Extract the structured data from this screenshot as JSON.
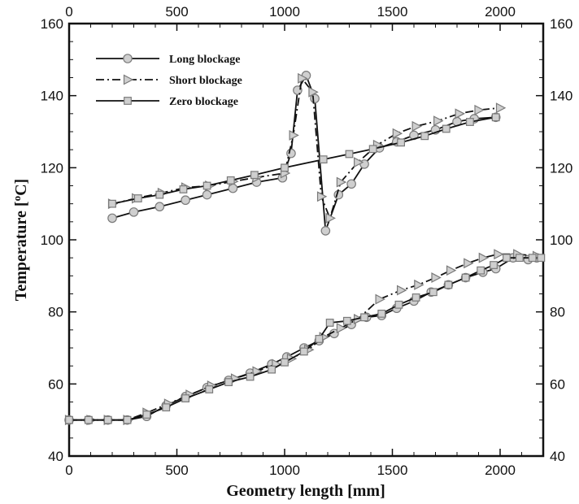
{
  "chart_data": {
    "type": "line",
    "xlabel": "Geometry length [mm]",
    "ylabel": "Temperature [",
    "ylabel_sup": "o",
    "ylabel_tail": "C]",
    "xlim": [
      0,
      2200
    ],
    "ylim": [
      40,
      160
    ],
    "x_ticks": [
      "0",
      "500",
      "1000",
      "1500",
      "2000"
    ],
    "y_ticks": [
      "40",
      "60",
      "80",
      "100",
      "120",
      "140",
      "160"
    ],
    "legend_position": "top-left",
    "grid": false,
    "series": [
      {
        "name": "Long blockage",
        "style": "solid",
        "marker": "circle",
        "upper": [
          [
            200,
            106
          ],
          [
            300,
            107.7
          ],
          [
            420,
            109.2
          ],
          [
            540,
            111
          ],
          [
            640,
            112.5
          ],
          [
            760,
            114.3
          ],
          [
            870,
            116
          ],
          [
            990,
            117.2
          ],
          [
            1030,
            124
          ],
          [
            1060,
            141.5
          ],
          [
            1100,
            145.6
          ],
          [
            1140,
            139.2
          ],
          [
            1190,
            102.5
          ],
          [
            1250,
            112.5
          ],
          [
            1310,
            115.5
          ],
          [
            1370,
            121
          ],
          [
            1440,
            125.5
          ],
          [
            1520,
            127.2
          ],
          [
            1600,
            129
          ],
          [
            1700,
            130.5
          ],
          [
            1800,
            132.8
          ],
          [
            1880,
            133.6
          ],
          [
            1980,
            134
          ]
        ],
        "lower": [
          [
            0,
            50
          ],
          [
            90,
            50
          ],
          [
            180,
            50
          ],
          [
            270,
            50
          ],
          [
            360,
            51
          ],
          [
            450,
            54
          ],
          [
            540,
            56.5
          ],
          [
            640,
            59
          ],
          [
            740,
            61
          ],
          [
            840,
            63
          ],
          [
            940,
            65.5
          ],
          [
            1010,
            67.5
          ],
          [
            1090,
            70
          ],
          [
            1160,
            72
          ],
          [
            1230,
            74
          ],
          [
            1310,
            76.5
          ],
          [
            1380,
            78.5
          ],
          [
            1450,
            79
          ],
          [
            1520,
            81
          ],
          [
            1600,
            83
          ],
          [
            1680,
            85.5
          ],
          [
            1760,
            87.5
          ],
          [
            1840,
            89.5
          ],
          [
            1920,
            91
          ],
          [
            1980,
            92
          ],
          [
            2060,
            95
          ],
          [
            2130,
            94.5
          ],
          [
            2170,
            95
          ]
        ]
      },
      {
        "name": "Short blockage",
        "style": "dashdot",
        "marker": "triangle",
        "upper": [
          [
            200,
            110
          ],
          [
            310,
            111.5
          ],
          [
            430,
            113
          ],
          [
            540,
            114.5
          ],
          [
            650,
            115
          ],
          [
            760,
            116.2
          ],
          [
            870,
            117.3
          ],
          [
            1000,
            118.5
          ],
          [
            1040,
            129
          ],
          [
            1080,
            144.8
          ],
          [
            1130,
            141
          ],
          [
            1170,
            112
          ],
          [
            1210,
            106
          ],
          [
            1260,
            116
          ],
          [
            1340,
            121.5
          ],
          [
            1430,
            126.3
          ],
          [
            1520,
            129.5
          ],
          [
            1610,
            131.5
          ],
          [
            1710,
            133
          ],
          [
            1810,
            135
          ],
          [
            1900,
            136
          ],
          [
            2000,
            136.6
          ]
        ],
        "lower": [
          [
            0,
            50
          ],
          [
            100,
            50
          ],
          [
            180,
            50
          ],
          [
            270,
            50
          ],
          [
            360,
            52
          ],
          [
            460,
            54.5
          ],
          [
            560,
            57
          ],
          [
            660,
            59.5
          ],
          [
            770,
            61.5
          ],
          [
            870,
            63.5
          ],
          [
            960,
            65.5
          ],
          [
            1030,
            67
          ],
          [
            1110,
            69.5
          ],
          [
            1180,
            73
          ],
          [
            1260,
            75.5
          ],
          [
            1340,
            78
          ],
          [
            1440,
            83.5
          ],
          [
            1540,
            86
          ],
          [
            1620,
            87.5
          ],
          [
            1700,
            89.5
          ],
          [
            1770,
            91.5
          ],
          [
            1850,
            93.5
          ],
          [
            1920,
            95
          ],
          [
            1990,
            96
          ],
          [
            2080,
            96
          ],
          [
            2170,
            95.5
          ]
        ]
      },
      {
        "name": "Zero blockage",
        "style": "solid",
        "marker": "square",
        "upper": [
          [
            200,
            110
          ],
          [
            320,
            111.5
          ],
          [
            420,
            112.5
          ],
          [
            530,
            114
          ],
          [
            640,
            115
          ],
          [
            750,
            116.5
          ],
          [
            860,
            118
          ],
          [
            1000,
            120
          ],
          [
            1180,
            122.3
          ],
          [
            1300,
            123.8
          ],
          [
            1410,
            125.2
          ],
          [
            1540,
            127
          ],
          [
            1650,
            128.8
          ],
          [
            1750,
            130.8
          ],
          [
            1860,
            132.7
          ],
          [
            1980,
            134
          ]
        ],
        "lower": [
          [
            0,
            50
          ],
          [
            90,
            50
          ],
          [
            180,
            50
          ],
          [
            270,
            50
          ],
          [
            360,
            51.5
          ],
          [
            450,
            53.5
          ],
          [
            540,
            56
          ],
          [
            650,
            58.5
          ],
          [
            740,
            60.5
          ],
          [
            840,
            62
          ],
          [
            940,
            64
          ],
          [
            1000,
            66
          ],
          [
            1090,
            69
          ],
          [
            1160,
            72.5
          ],
          [
            1210,
            77
          ],
          [
            1290,
            77.5
          ],
          [
            1370,
            78.5
          ],
          [
            1450,
            79.5
          ],
          [
            1530,
            82
          ],
          [
            1610,
            84
          ],
          [
            1690,
            85.5
          ],
          [
            1760,
            87.5
          ],
          [
            1840,
            89.5
          ],
          [
            1910,
            91.5
          ],
          [
            1970,
            93
          ],
          [
            2030,
            95
          ],
          [
            2090,
            95
          ],
          [
            2150,
            95
          ],
          [
            2190,
            95
          ]
        ]
      }
    ]
  }
}
